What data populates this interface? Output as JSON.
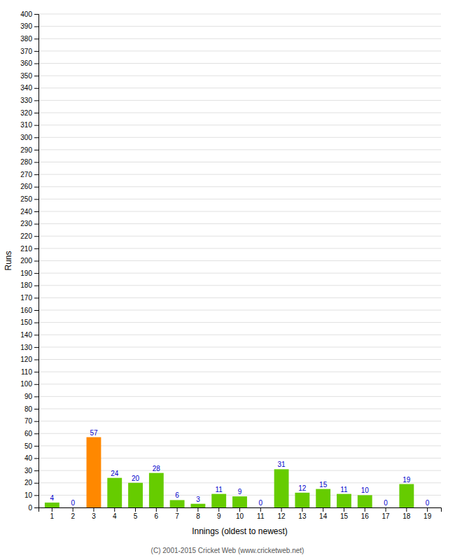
{
  "chart_data": {
    "type": "bar",
    "categories": [
      "1",
      "2",
      "3",
      "4",
      "5",
      "6",
      "7",
      "8",
      "9",
      "10",
      "11",
      "12",
      "13",
      "14",
      "15",
      "16",
      "17",
      "18",
      "19"
    ],
    "values": [
      4,
      0,
      57,
      24,
      20,
      28,
      6,
      3,
      11,
      9,
      0,
      31,
      12,
      15,
      11,
      10,
      0,
      19,
      0
    ],
    "colors": [
      "#66cc00",
      "#66cc00",
      "#ff8800",
      "#66cc00",
      "#66cc00",
      "#66cc00",
      "#66cc00",
      "#66cc00",
      "#66cc00",
      "#66cc00",
      "#66cc00",
      "#66cc00",
      "#66cc00",
      "#66cc00",
      "#66cc00",
      "#66cc00",
      "#66cc00",
      "#66cc00",
      "#66cc00"
    ],
    "xlabel": "Innings (oldest to newest)",
    "ylabel": "Runs",
    "ylim": [
      0,
      400
    ],
    "yticks": [
      0,
      10,
      20,
      30,
      40,
      50,
      60,
      70,
      80,
      90,
      100,
      110,
      120,
      130,
      140,
      150,
      160,
      170,
      180,
      190,
      200,
      210,
      220,
      230,
      240,
      250,
      260,
      270,
      280,
      290,
      300,
      310,
      320,
      330,
      340,
      350,
      360,
      370,
      380,
      390,
      400
    ],
    "grid": true,
    "data_labels": true,
    "annotations": [
      "(C) 2001-2015 Cricket Web (www.cricketweb.net)"
    ]
  }
}
